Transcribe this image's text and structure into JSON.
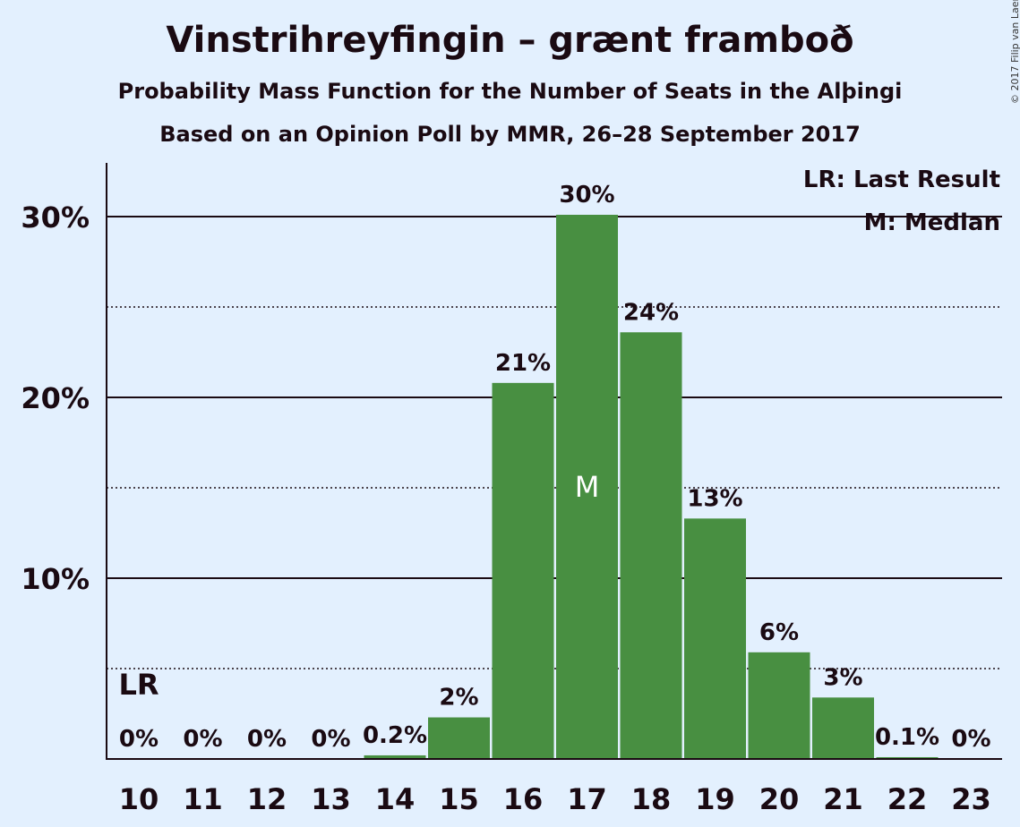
{
  "header": {
    "title": "Vinstrihreyfingin – grænt framboð",
    "subtitle": "Probability Mass Function for the Number of Seats in the Alþingi",
    "subtitle2": "Based on an Opinion Poll by MMR, 26–28 September 2017",
    "copyright": "© 2017 Filip van Laenen"
  },
  "legend": {
    "last_result": "LR: Last Result",
    "median": "M: Median"
  },
  "colors": {
    "background": "#e3f0fe",
    "bar": "#488f41",
    "text": "#1a0a12"
  },
  "chart_data": {
    "type": "bar",
    "categories": [
      "10",
      "11",
      "12",
      "13",
      "14",
      "15",
      "16",
      "17",
      "18",
      "19",
      "20",
      "21",
      "22",
      "23"
    ],
    "values": [
      0,
      0,
      0,
      0,
      0.2,
      2.3,
      20.8,
      30.1,
      23.6,
      13.3,
      5.9,
      3.4,
      0.1,
      0
    ],
    "value_labels": [
      "0%",
      "0%",
      "0%",
      "0%",
      "0.2%",
      "2%",
      "21%",
      "30%",
      "24%",
      "13%",
      "6%",
      "3%",
      "0.1%",
      "0%"
    ],
    "y_ticks": [
      {
        "value": 10,
        "label": "10%"
      },
      {
        "value": 20,
        "label": "20%"
      },
      {
        "value": 30,
        "label": "30%"
      }
    ],
    "ylim": [
      0,
      33
    ],
    "minor_grid": [
      5,
      15,
      25
    ],
    "last_result": {
      "category": "10",
      "label": "LR"
    },
    "median": {
      "category": "17",
      "label": "M"
    },
    "legend_position": "top-right"
  }
}
